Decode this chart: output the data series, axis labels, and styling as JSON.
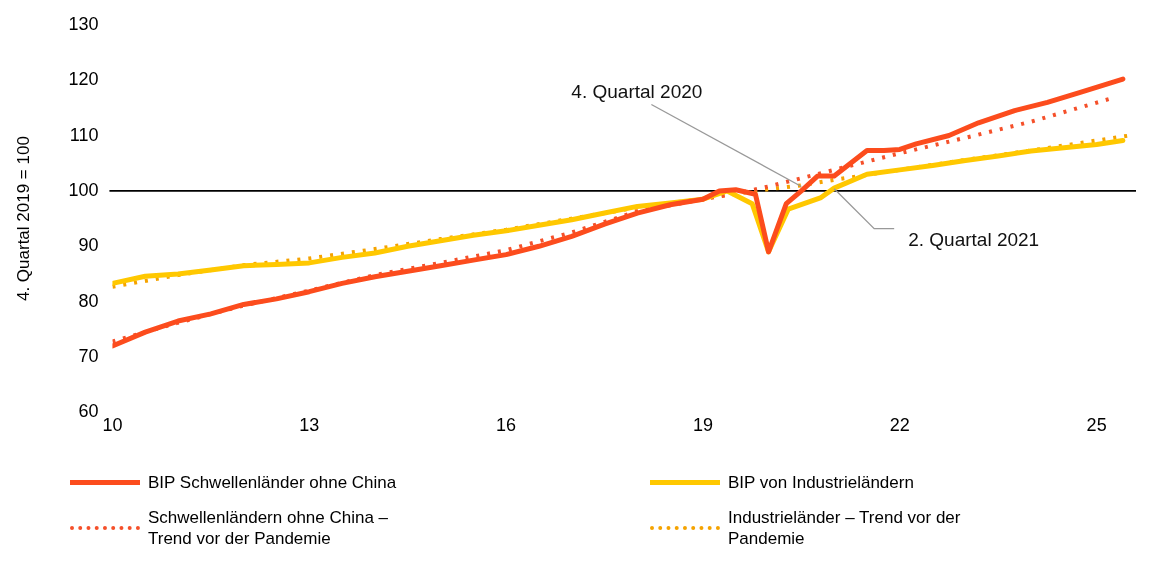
{
  "chart_data": {
    "type": "line",
    "ylabel": "4. Quartal 2019 = 100",
    "xlim": [
      10,
      25.6
    ],
    "xticks": [
      10,
      13,
      16,
      19,
      22,
      25
    ],
    "ylim": [
      60,
      130
    ],
    "yticks": [
      60,
      70,
      80,
      90,
      100,
      110,
      120,
      130
    ],
    "grid": false,
    "legend": "bottom",
    "marker": "none",
    "ref_lines": [
      {
        "axis": "y",
        "value": 100,
        "color": "#000000"
      }
    ],
    "annotations": [
      {
        "text": "4. Quartal 2020",
        "x": 20.5,
        "y": 100.8
      },
      {
        "text": "2. Quartal 2021",
        "x": 21.0,
        "y": 100.4
      }
    ],
    "series": [
      {
        "name": "BIP Schwellenländer ohne China",
        "color": "#fc4c1d",
        "line_style": "solid",
        "x": [
          10,
          10.5,
          11,
          11.5,
          12,
          12.5,
          13,
          13.5,
          14,
          14.5,
          15,
          15.5,
          16,
          16.5,
          17,
          17.5,
          18,
          18.5,
          19,
          19.25,
          19.5,
          19.8,
          20.0,
          20.27,
          20.5,
          20.75,
          21.0,
          21.25,
          21.5,
          21.76,
          22.0,
          22.25,
          22.75,
          23.2,
          23.75,
          24.25,
          24.75,
          25.4
        ],
        "values": [
          72,
          74.5,
          76.5,
          77.8,
          79.5,
          80.5,
          81.8,
          83.3,
          84.5,
          85.5,
          86.5,
          87.5,
          88.5,
          90,
          91.8,
          94,
          96,
          97.5,
          98.5,
          100,
          100.2,
          99.4,
          89,
          97.7,
          100,
          102.7,
          102.7,
          105,
          107.3,
          107.3,
          107.5,
          108.5,
          110,
          112.3,
          114.5,
          116,
          117.8,
          120.2
        ]
      },
      {
        "name": "BIP von Industrieländern",
        "color": "#ffc800",
        "line_style": "solid",
        "x": [
          10,
          10.5,
          11,
          11.5,
          12,
          12.5,
          13,
          13.5,
          14,
          14.5,
          15,
          15.5,
          16,
          16.5,
          17,
          17.5,
          18,
          18.5,
          19,
          19.37,
          19.75,
          20.0,
          20.3,
          20.8,
          21.0,
          21.5,
          22.0,
          22.5,
          23.0,
          23.5,
          24.0,
          24.5,
          25.0,
          25.4
        ],
        "values": [
          83.3,
          84.6,
          85,
          85.7,
          86.5,
          86.7,
          87,
          88,
          88.8,
          90,
          91,
          92,
          92.8,
          93.8,
          94.8,
          96,
          97.2,
          97.8,
          98.5,
          100,
          97.7,
          89,
          96.7,
          98.8,
          100.5,
          103,
          103.8,
          104.6,
          105.5,
          106.3,
          107.2,
          107.8,
          108.4,
          109.1
        ]
      },
      {
        "name": "Schwellenländern ohne China – Trend vor der Pandemie",
        "color": "#f5502a",
        "line_style": "dotted",
        "x": [
          10,
          11,
          12,
          13,
          14,
          15,
          16,
          17,
          18,
          19,
          19.5,
          20,
          20.5,
          21,
          21.5,
          22,
          23,
          24,
          25.25
        ],
        "values": [
          72.8,
          76.2,
          79.3,
          82,
          84.8,
          87,
          89.3,
          92.5,
          96.3,
          98.5,
          99.5,
          100.8,
          102.3,
          103.8,
          105.3,
          106.8,
          109.6,
          112.5,
          116.8
        ]
      },
      {
        "name": "Industrieländer – Trend vor der Pandemie",
        "color": "#f5a300",
        "line_style": "dotted",
        "x": [
          10,
          11,
          12,
          13,
          14,
          15,
          16,
          17,
          18,
          19,
          19.5,
          20,
          20.5,
          21,
          22,
          23,
          24,
          25.5
        ],
        "values": [
          82.7,
          84.8,
          86.6,
          87.8,
          89.5,
          91.3,
          93,
          95,
          97,
          98.6,
          99.5,
          100.3,
          101,
          102,
          103.8,
          105.6,
          107.3,
          110
        ]
      }
    ]
  }
}
